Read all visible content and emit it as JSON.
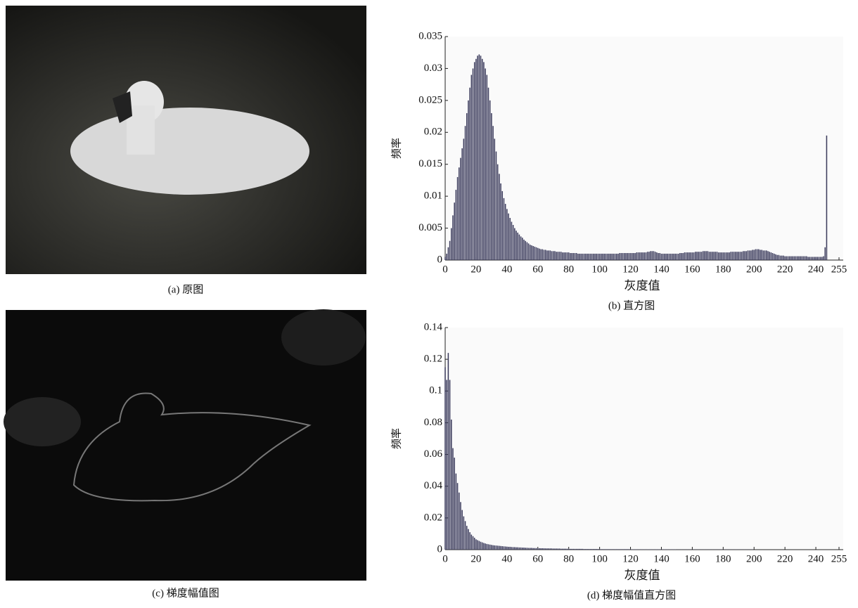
{
  "photos": [
    {
      "caption": "(a) 原图"
    },
    {
      "caption": "(c) 梯度幅值图"
    }
  ],
  "chart_data": [
    {
      "type": "bar",
      "caption": "(b) 直方图",
      "x_label": "灰度值",
      "y_label": "频率",
      "color": "#3b3b5c",
      "xlim": [
        0,
        255
      ],
      "xticks": [
        0,
        20,
        40,
        60,
        80,
        100,
        120,
        140,
        160,
        180,
        200,
        220,
        240,
        255
      ],
      "ylim": [
        0,
        0.035
      ],
      "yticks": [
        0,
        0.005,
        0.01,
        0.015,
        0.02,
        0.025,
        0.03,
        0.035
      ],
      "values": [
        0.0005,
        0.001,
        0.002,
        0.003,
        0.005,
        0.007,
        0.009,
        0.011,
        0.013,
        0.0145,
        0.016,
        0.0175,
        0.019,
        0.021,
        0.023,
        0.025,
        0.027,
        0.029,
        0.03,
        0.031,
        0.0315,
        0.032,
        0.0322,
        0.032,
        0.0315,
        0.031,
        0.03,
        0.029,
        0.027,
        0.025,
        0.023,
        0.021,
        0.019,
        0.017,
        0.015,
        0.0135,
        0.012,
        0.0108,
        0.0097,
        0.0088,
        0.008,
        0.0073,
        0.0066,
        0.006,
        0.0055,
        0.005,
        0.0046,
        0.0043,
        0.004,
        0.0037,
        0.0035,
        0.0032,
        0.003,
        0.0028,
        0.0026,
        0.0024,
        0.0023,
        0.0022,
        0.0021,
        0.002,
        0.0019,
        0.0018,
        0.0017,
        0.0017,
        0.0016,
        0.0016,
        0.0015,
        0.0015,
        0.0015,
        0.0014,
        0.0014,
        0.0014,
        0.0013,
        0.0013,
        0.0013,
        0.0013,
        0.0012,
        0.0012,
        0.0012,
        0.0012,
        0.0012,
        0.0011,
        0.0011,
        0.0011,
        0.0011,
        0.0011,
        0.001,
        0.001,
        0.001,
        0.001,
        0.001,
        0.001,
        0.001,
        0.001,
        0.001,
        0.001,
        0.001,
        0.001,
        0.001,
        0.001,
        0.001,
        0.001,
        0.001,
        0.001,
        0.001,
        0.001,
        0.001,
        0.001,
        0.001,
        0.001,
        0.001,
        0.001,
        0.001,
        0.0011,
        0.0011,
        0.0011,
        0.0011,
        0.0011,
        0.0011,
        0.0011,
        0.0011,
        0.0011,
        0.0011,
        0.0011,
        0.0012,
        0.0012,
        0.0012,
        0.0012,
        0.0012,
        0.0012,
        0.0012,
        0.0013,
        0.0013,
        0.0014,
        0.0014,
        0.0014,
        0.0013,
        0.0012,
        0.0011,
        0.0011,
        0.001,
        0.001,
        0.001,
        0.001,
        0.001,
        0.001,
        0.001,
        0.001,
        0.001,
        0.001,
        0.001,
        0.001,
        0.0011,
        0.0011,
        0.0011,
        0.0012,
        0.0012,
        0.0012,
        0.0012,
        0.0012,
        0.0012,
        0.0012,
        0.0013,
        0.0013,
        0.0013,
        0.0013,
        0.0013,
        0.0014,
        0.0014,
        0.0014,
        0.0014,
        0.0013,
        0.0013,
        0.0013,
        0.0013,
        0.0013,
        0.0013,
        0.0012,
        0.0012,
        0.0012,
        0.0012,
        0.0012,
        0.0012,
        0.0012,
        0.0012,
        0.0013,
        0.0013,
        0.0013,
        0.0013,
        0.0013,
        0.0013,
        0.0013,
        0.0013,
        0.0014,
        0.0014,
        0.0014,
        0.0015,
        0.0015,
        0.0015,
        0.0016,
        0.0016,
        0.0017,
        0.0017,
        0.0017,
        0.0016,
        0.0016,
        0.0015,
        0.0015,
        0.0015,
        0.0014,
        0.0013,
        0.0012,
        0.0011,
        0.001,
        0.0009,
        0.0008,
        0.0008,
        0.0007,
        0.0007,
        0.0007,
        0.0006,
        0.0006,
        0.0006,
        0.0006,
        0.0006,
        0.0006,
        0.0006,
        0.0006,
        0.0006,
        0.0006,
        0.0006,
        0.0006,
        0.0006,
        0.0006,
        0.0006,
        0.0005,
        0.0005,
        0.0005,
        0.0005,
        0.0005,
        0.0005,
        0.0005,
        0.0005,
        0.0005,
        0.0005,
        0.0006,
        0.002,
        0.0195,
        0,
        0,
        0,
        0,
        0,
        0,
        0,
        0
      ]
    },
    {
      "type": "bar",
      "caption": "(d) 梯度幅值直方图",
      "x_label": "灰度值",
      "y_label": "频率",
      "color": "#3b3b5c",
      "xlim": [
        0,
        255
      ],
      "xticks": [
        0,
        20,
        40,
        60,
        80,
        100,
        120,
        140,
        160,
        180,
        200,
        220,
        240,
        255
      ],
      "ylim": [
        0,
        0.14
      ],
      "yticks": [
        0,
        0.02,
        0.04,
        0.06,
        0.08,
        0.1,
        0.12,
        0.14
      ],
      "values": [
        0.115,
        0.107,
        0.124,
        0.107,
        0.082,
        0.064,
        0.058,
        0.048,
        0.042,
        0.036,
        0.03,
        0.025,
        0.021,
        0.018,
        0.015,
        0.013,
        0.011,
        0.0095,
        0.0085,
        0.0075,
        0.0065,
        0.006,
        0.0055,
        0.005,
        0.0046,
        0.0042,
        0.0039,
        0.0036,
        0.0034,
        0.0032,
        0.003,
        0.0028,
        0.0027,
        0.0026,
        0.0025,
        0.0024,
        0.0023,
        0.0022,
        0.0021,
        0.002,
        0.0019,
        0.0018,
        0.0018,
        0.0017,
        0.0016,
        0.0016,
        0.0015,
        0.0015,
        0.0014,
        0.0014,
        0.0013,
        0.0013,
        0.0012,
        0.0012,
        0.0011,
        0.0011,
        0.0011,
        0.001,
        0.001,
        0.001,
        0.0009,
        0.0009,
        0.0009,
        0.0009,
        0.0009,
        0.0008,
        0.0008,
        0.0008,
        0.0008,
        0.0008,
        0.0007,
        0.0007,
        0.0007,
        0.0007,
        0.0007,
        0.0006,
        0.0006,
        0.0006,
        0.0006,
        0.0006,
        0.0005,
        0.0005,
        0.0005,
        0.0005,
        0.0005,
        0.0005,
        0.0005,
        0.0005,
        0.0005,
        0.0005,
        0.0004,
        0.0004,
        0.0004,
        0.0004,
        0.0004,
        0.0004,
        0.0004,
        0.0004,
        0.0004,
        0.0004,
        0.0003,
        0.0003,
        0.0003,
        0.0003,
        0.0003,
        0.0003,
        0.0003,
        0.0003,
        0.0003,
        0.0003,
        0.0003,
        0.0003,
        0.0003,
        0.0003,
        0.0003,
        0.0003,
        0.0003,
        0.0003,
        0.0003,
        0.0003,
        0.0002,
        0.0002,
        0.0002,
        0.0002,
        0.0002,
        0.0002,
        0.0002,
        0.0002,
        0.0002,
        0.0002,
        0.0002,
        0.0002,
        0.0002,
        0.0002,
        0.0002,
        0.0002,
        0.0002,
        0.0002,
        0.0002,
        0.0002,
        0.0002,
        0.0002,
        0.0002,
        0.0002,
        0.0002,
        0.0002,
        0.0002,
        0.0002,
        0.0002,
        0.0002,
        0.0001,
        0.0001,
        0.0001,
        0.0001,
        0.0001,
        0.0001,
        0.0001,
        0.0001,
        0.0001,
        0.0001,
        0.0001,
        0.0001,
        0.0001,
        0.0001,
        0.0001,
        0.0001,
        0.0001,
        0.0001,
        0.0001,
        0.0001,
        0.0001,
        0.0001,
        0.0001,
        0.0001,
        0.0001,
        0.0001,
        0.0001,
        0.0001,
        0.0001,
        0.0001,
        0.0001,
        0.0001,
        0.0001,
        0.0001,
        0.0001,
        0.0001,
        0.0001,
        0.0001,
        0.0001,
        0.0001,
        0.0001,
        0.0001,
        0.0001,
        0.0001,
        0.0001,
        0.0001,
        0.0001,
        0.0001,
        0.0001,
        0.0001,
        0,
        0,
        0,
        0,
        0,
        0,
        0,
        0,
        0,
        0,
        0,
        0,
        0,
        0,
        0,
        0,
        0,
        0,
        0,
        0,
        0,
        0,
        0,
        0,
        0,
        0,
        0,
        0,
        0,
        0,
        0,
        0,
        0,
        0,
        0,
        0,
        0,
        0,
        0,
        0,
        0,
        0,
        0,
        0,
        0,
        0,
        0,
        0,
        0,
        0,
        0,
        0,
        0,
        0,
        0,
        0
      ]
    }
  ]
}
